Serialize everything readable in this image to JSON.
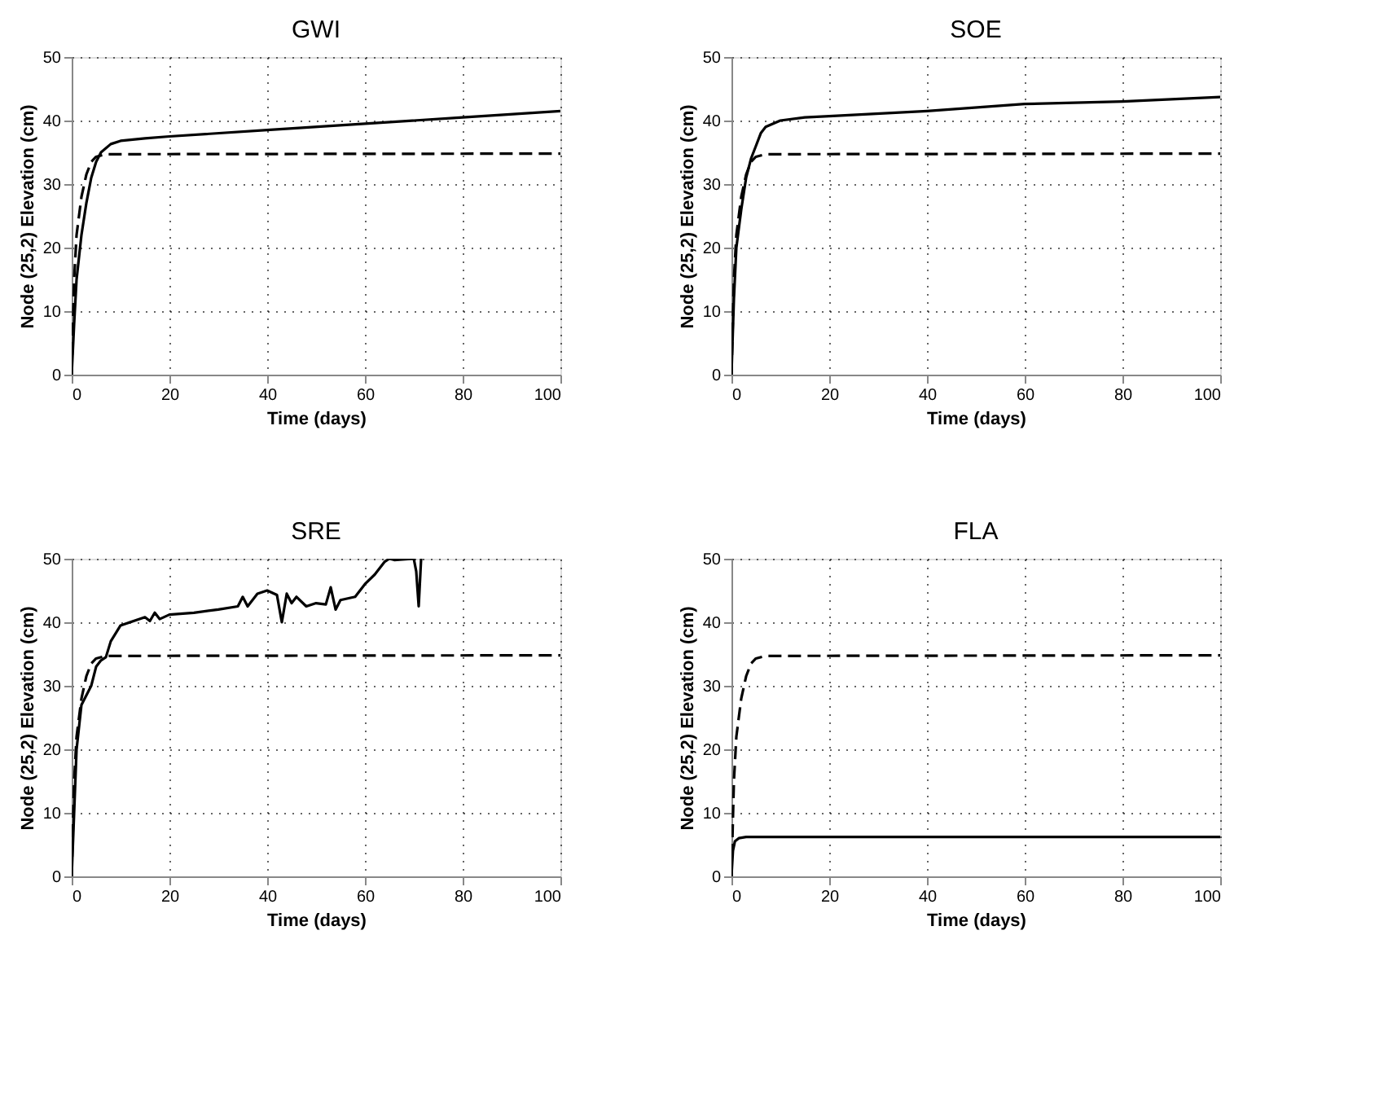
{
  "chart_data": [
    {
      "type": "line",
      "title": "GWI",
      "xlabel": "Time (days)",
      "ylabel": "Node (25,2) Elevation (cm)",
      "xlim": [
        0,
        100
      ],
      "ylim": [
        0,
        50
      ],
      "xticks": [
        0,
        20,
        40,
        60,
        80,
        100
      ],
      "yticks": [
        0,
        10,
        20,
        30,
        40,
        50
      ],
      "grid": true,
      "series": [
        {
          "color": "#000000",
          "line_style": "solid",
          "x": [
            0,
            0.5,
            1,
            2,
            3,
            4,
            5,
            6,
            8,
            10,
            15,
            20,
            40,
            60,
            80,
            100
          ],
          "values": [
            0,
            8,
            15,
            22,
            27,
            31,
            33.5,
            35,
            36.3,
            36.8,
            37.2,
            37.5,
            38.5,
            39.5,
            40.5,
            41.5
          ]
        },
        {
          "color": "#000000",
          "line_style": "dashed",
          "x": [
            0,
            0.5,
            1,
            2,
            3,
            4,
            5,
            7,
            100
          ],
          "values": [
            0,
            15,
            22,
            28,
            31.5,
            33.5,
            34.3,
            34.7,
            34.8
          ]
        }
      ]
    },
    {
      "type": "line",
      "title": "SOE",
      "xlabel": "Time (days)",
      "ylabel": "Node (25,2) Elevation (cm)",
      "xlim": [
        0,
        100
      ],
      "ylim": [
        0,
        50
      ],
      "xticks": [
        0,
        20,
        40,
        60,
        80,
        100
      ],
      "yticks": [
        0,
        10,
        20,
        30,
        40,
        50
      ],
      "grid": true,
      "series": [
        {
          "color": "#000000",
          "line_style": "solid",
          "x": [
            0,
            0.5,
            1,
            2,
            3,
            4,
            5,
            6,
            7,
            10,
            15,
            20,
            40,
            60,
            80,
            100
          ],
          "values": [
            0,
            12,
            20,
            26,
            31,
            34,
            36,
            38,
            39,
            40,
            40.5,
            40.7,
            41.5,
            42.6,
            43,
            43.7
          ]
        },
        {
          "color": "#000000",
          "line_style": "dashed",
          "x": [
            0,
            0.5,
            1,
            2,
            3,
            4,
            5,
            7,
            100
          ],
          "values": [
            0,
            15,
            22,
            28,
            31.5,
            33.5,
            34.3,
            34.7,
            34.8
          ]
        }
      ]
    },
    {
      "type": "line",
      "title": "SRE",
      "xlabel": "Time (days)",
      "ylabel": "Node (25,2) Elevation (cm)",
      "xlim": [
        0,
        100
      ],
      "ylim": [
        0,
        50
      ],
      "xticks": [
        0,
        20,
        40,
        60,
        80,
        100
      ],
      "yticks": [
        0,
        10,
        20,
        30,
        40,
        50
      ],
      "grid": true,
      "series": [
        {
          "color": "#000000",
          "line_style": "solid",
          "x": [
            0,
            1,
            2,
            3,
            4,
            5,
            6,
            7,
            8,
            10,
            15,
            16,
            17,
            18,
            20,
            25,
            30,
            34,
            35,
            36,
            38,
            40,
            42,
            43,
            44,
            45,
            46,
            48,
            50,
            52,
            53,
            54,
            55,
            58,
            60,
            62,
            64,
            65,
            66,
            70,
            70.5,
            71,
            71.5
          ],
          "values": [
            0,
            20,
            27,
            28.5,
            30,
            33,
            34,
            34.5,
            37,
            39.5,
            40.8,
            40.2,
            41.5,
            40.5,
            41.2,
            41.5,
            42,
            42.5,
            44,
            42.5,
            44.5,
            45,
            44.3,
            40,
            44.5,
            43,
            44,
            42.5,
            43,
            42.8,
            45.5,
            42,
            43.5,
            44,
            46,
            47.5,
            49.5,
            50,
            49.8,
            50,
            48,
            42.5,
            50
          ]
        },
        {
          "color": "#000000",
          "line_style": "dashed",
          "x": [
            0,
            0.5,
            1,
            2,
            3,
            4,
            5,
            7,
            100
          ],
          "values": [
            0,
            15,
            22,
            28,
            31.5,
            33.5,
            34.3,
            34.7,
            34.8
          ]
        }
      ]
    },
    {
      "type": "line",
      "title": "FLA",
      "xlabel": "Time (days)",
      "ylabel": "Node (25,2) Elevation (cm)",
      "xlim": [
        0,
        100
      ],
      "ylim": [
        0,
        50
      ],
      "xticks": [
        0,
        20,
        40,
        60,
        80,
        100
      ],
      "yticks": [
        0,
        10,
        20,
        30,
        40,
        50
      ],
      "grid": true,
      "series": [
        {
          "color": "#000000",
          "line_style": "solid",
          "x": [
            0,
            0.3,
            0.7,
            1.5,
            3,
            100
          ],
          "values": [
            0,
            4,
            5.5,
            6,
            6.2,
            6.2
          ]
        },
        {
          "color": "#000000",
          "line_style": "dashed",
          "x": [
            0,
            0.5,
            1,
            2,
            3,
            4,
            5,
            7,
            100
          ],
          "values": [
            0,
            15,
            22,
            28,
            31.5,
            33.5,
            34.3,
            34.7,
            34.8
          ]
        }
      ]
    }
  ]
}
